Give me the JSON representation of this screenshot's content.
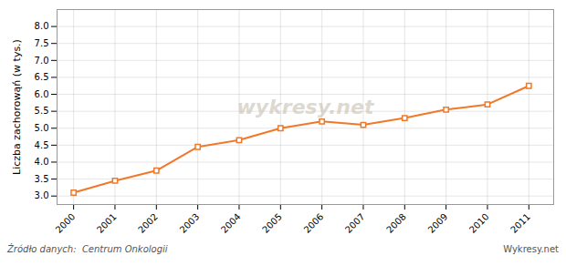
{
  "chart_data": {
    "type": "line",
    "x": [
      2000,
      2001,
      2002,
      2003,
      2004,
      2005,
      2006,
      2007,
      2008,
      2009,
      2010,
      2011
    ],
    "values": [
      3.1,
      3.45,
      3.75,
      4.45,
      4.65,
      5.0,
      5.2,
      5.1,
      5.3,
      5.55,
      5.7,
      6.25
    ],
    "color": "#f07828",
    "marker": "square",
    "ylabel": "Liczba zachorowąń (w tys.)",
    "xlim": [
      1999.6,
      2011.6
    ],
    "xticks": [
      2000,
      2001,
      2002,
      2003,
      2004,
      2005,
      2006,
      2007,
      2008,
      2009,
      2010,
      2011
    ],
    "ylim": [
      2.75,
      8.5
    ],
    "yticks": [
      {
        "value": 3,
        "label": "3.0"
      },
      3.5,
      {
        "value": 4,
        "label": "4.0"
      },
      4.5,
      {
        "value": 5,
        "label": "5.0"
      },
      5.5,
      {
        "value": 6,
        "label": "6.0"
      },
      6.5,
      {
        "value": 7,
        "label": "7.0"
      },
      7.5,
      {
        "value": 8,
        "label": "8.0"
      }
    ],
    "grid": true,
    "annotations": [
      "wykresy.net"
    ],
    "source": "Źródło danych:  Centrum Onkologii",
    "brand": "Wykresy.net"
  }
}
